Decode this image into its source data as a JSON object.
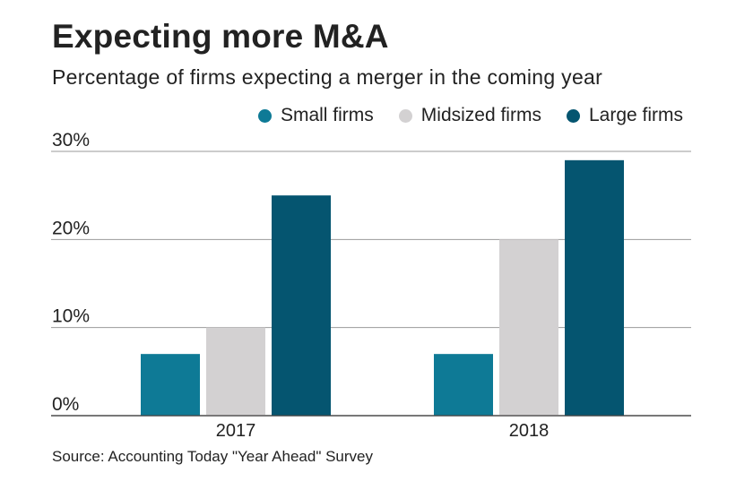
{
  "chart_data": {
    "type": "bar",
    "title": "Expecting more M&A",
    "subtitle": "Percentage of firms expecting a merger in the coming year",
    "categories": [
      "2017",
      "2018"
    ],
    "series": [
      {
        "name": "Small firms",
        "color": "#0e7a96",
        "values": [
          7,
          7
        ]
      },
      {
        "name": "Midsized firms",
        "color": "#d3d1d2",
        "values": [
          10,
          20
        ]
      },
      {
        "name": "Large firms",
        "color": "#055570",
        "values": [
          25,
          29
        ]
      }
    ],
    "ylim": [
      0,
      30
    ],
    "yticks": [
      "0%",
      "10%",
      "20%",
      "30%"
    ],
    "ytick_values": [
      0,
      10,
      20,
      30
    ],
    "xlabel": "",
    "ylabel": "",
    "grid": true,
    "legend": "top-right",
    "source": "Source: Accounting Today \"Year Ahead\" Survey"
  }
}
